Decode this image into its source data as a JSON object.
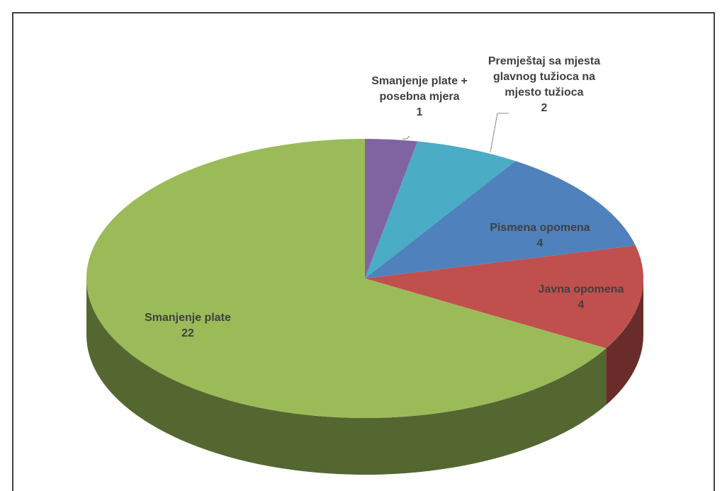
{
  "chart_data": {
    "type": "pie3d",
    "categories": [
      "Smanjenje plate + posebna mjera",
      "Premještaj sa mjesta glavnog tužioca na mjesto tužioca",
      "Pismena opomena",
      "Javna opomena",
      "Smanjenje plate"
    ],
    "values": [
      1,
      2,
      4,
      4,
      22
    ],
    "colors": [
      "#8064a2",
      "#4bacc6",
      "#4f81bd",
      "#c0504d",
      "#9bbb59"
    ]
  }
}
